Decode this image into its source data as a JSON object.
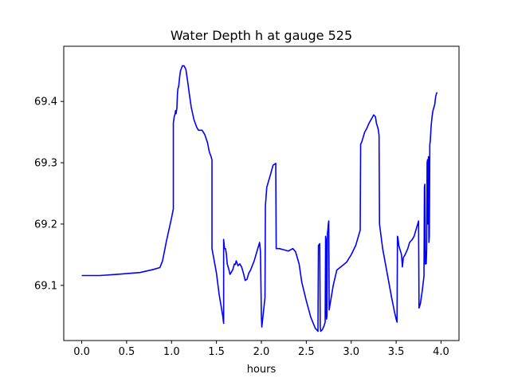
{
  "chart_data": {
    "type": "line",
    "title": "Water Depth h at gauge 525",
    "xlabel": "hours",
    "ylabel": "",
    "xlim": [
      -0.2,
      4.2
    ],
    "ylim": [
      69.01,
      69.49
    ],
    "xticks": [
      0.0,
      0.5,
      1.0,
      1.5,
      2.0,
      2.5,
      3.0,
      3.5,
      4.0
    ],
    "xtick_labels": [
      "0.0",
      "0.5",
      "1.0",
      "1.5",
      "2.0",
      "2.5",
      "3.0",
      "3.5",
      "4.0"
    ],
    "yticks": [
      69.1,
      69.2,
      69.3,
      69.4
    ],
    "ytick_labels": [
      "69.1",
      "69.2",
      "69.3",
      "69.4"
    ],
    "grid": false,
    "series": [
      {
        "color": "#0000ff",
        "points": [
          [
            0.0,
            69.116
          ],
          [
            0.2,
            69.116
          ],
          [
            0.4,
            69.118
          ],
          [
            0.65,
            69.121
          ],
          [
            0.8,
            69.126
          ],
          [
            0.87,
            69.129
          ],
          [
            0.9,
            69.14
          ],
          [
            0.94,
            69.17
          ],
          [
            1.0,
            69.21
          ],
          [
            1.02,
            69.225
          ],
          [
            1.02,
            69.365
          ],
          [
            1.03,
            69.375
          ],
          [
            1.04,
            69.38
          ],
          [
            1.045,
            69.385
          ],
          [
            1.05,
            69.38
          ],
          [
            1.055,
            69.385
          ],
          [
            1.06,
            69.39
          ],
          [
            1.065,
            69.41
          ],
          [
            1.07,
            69.42
          ],
          [
            1.08,
            69.425
          ],
          [
            1.09,
            69.44
          ],
          [
            1.1,
            69.45
          ],
          [
            1.12,
            69.458
          ],
          [
            1.14,
            69.458
          ],
          [
            1.16,
            69.452
          ],
          [
            1.18,
            69.432
          ],
          [
            1.2,
            69.41
          ],
          [
            1.22,
            69.39
          ],
          [
            1.25,
            69.37
          ],
          [
            1.28,
            69.358
          ],
          [
            1.3,
            69.353
          ],
          [
            1.34,
            69.353
          ],
          [
            1.37,
            69.346
          ],
          [
            1.4,
            69.333
          ],
          [
            1.42,
            69.318
          ],
          [
            1.44,
            69.31
          ],
          [
            1.45,
            69.305
          ],
          [
            1.45,
            69.16
          ],
          [
            1.5,
            69.12
          ],
          [
            1.53,
            69.085
          ],
          [
            1.57,
            69.05
          ],
          [
            1.58,
            69.038
          ],
          [
            1.58,
            69.175
          ],
          [
            1.59,
            69.16
          ],
          [
            1.6,
            69.16
          ],
          [
            1.61,
            69.152
          ],
          [
            1.62,
            69.135
          ],
          [
            1.64,
            69.125
          ],
          [
            1.65,
            69.118
          ],
          [
            1.66,
            69.12
          ],
          [
            1.68,
            69.125
          ],
          [
            1.7,
            69.135
          ],
          [
            1.71,
            69.134
          ],
          [
            1.72,
            69.14
          ],
          [
            1.74,
            69.132
          ],
          [
            1.76,
            69.135
          ],
          [
            1.78,
            69.13
          ],
          [
            1.8,
            69.12
          ],
          [
            1.82,
            69.108
          ],
          [
            1.84,
            69.11
          ],
          [
            1.86,
            69.12
          ],
          [
            1.88,
            69.125
          ],
          [
            1.92,
            69.14
          ],
          [
            1.95,
            69.155
          ],
          [
            1.97,
            69.165
          ],
          [
            1.98,
            69.17
          ],
          [
            1.99,
            69.155
          ],
          [
            2.0,
            69.05
          ],
          [
            2.005,
            69.032
          ],
          [
            2.04,
            69.08
          ],
          [
            2.045,
            69.23
          ],
          [
            2.05,
            69.24
          ],
          [
            2.06,
            69.26
          ],
          [
            2.08,
            69.27
          ],
          [
            2.1,
            69.28
          ],
          [
            2.13,
            69.296
          ],
          [
            2.15,
            69.298
          ],
          [
            2.16,
            69.299
          ],
          [
            2.165,
            69.16
          ],
          [
            2.2,
            69.16
          ],
          [
            2.25,
            69.158
          ],
          [
            2.3,
            69.156
          ],
          [
            2.35,
            69.16
          ],
          [
            2.38,
            69.155
          ],
          [
            2.42,
            69.135
          ],
          [
            2.45,
            69.105
          ],
          [
            2.5,
            69.075
          ],
          [
            2.55,
            69.048
          ],
          [
            2.6,
            69.03
          ],
          [
            2.62,
            69.027
          ],
          [
            2.63,
            69.025
          ],
          [
            2.635,
            69.165
          ],
          [
            2.645,
            69.167
          ],
          [
            2.65,
            69.168
          ],
          [
            2.655,
            69.032
          ],
          [
            2.66,
            69.025
          ],
          [
            2.68,
            69.028
          ],
          [
            2.7,
            69.035
          ],
          [
            2.71,
            69.04
          ],
          [
            2.715,
            69.18
          ],
          [
            2.72,
            69.175
          ],
          [
            2.725,
            69.045
          ],
          [
            2.73,
            69.05
          ],
          [
            2.735,
            69.185
          ],
          [
            2.74,
            69.19
          ],
          [
            2.745,
            69.2
          ],
          [
            2.75,
            69.205
          ],
          [
            2.755,
            69.06
          ],
          [
            2.76,
            69.065
          ],
          [
            2.8,
            69.1
          ],
          [
            2.84,
            69.125
          ],
          [
            2.9,
            69.132
          ],
          [
            2.95,
            69.138
          ],
          [
            3.0,
            69.15
          ],
          [
            3.05,
            69.165
          ],
          [
            3.08,
            69.18
          ],
          [
            3.1,
            69.19
          ],
          [
            3.105,
            69.33
          ],
          [
            3.12,
            69.335
          ],
          [
            3.14,
            69.345
          ],
          [
            3.15,
            69.35
          ],
          [
            3.17,
            69.355
          ],
          [
            3.2,
            69.365
          ],
          [
            3.22,
            69.37
          ],
          [
            3.25,
            69.378
          ],
          [
            3.27,
            69.375
          ],
          [
            3.28,
            69.365
          ],
          [
            3.3,
            69.355
          ],
          [
            3.31,
            69.345
          ],
          [
            3.315,
            69.2
          ],
          [
            3.35,
            69.16
          ],
          [
            3.4,
            69.12
          ],
          [
            3.45,
            69.08
          ],
          [
            3.48,
            69.058
          ],
          [
            3.5,
            69.045
          ],
          [
            3.51,
            69.04
          ],
          [
            3.515,
            69.18
          ],
          [
            3.52,
            69.178
          ],
          [
            3.53,
            69.165
          ],
          [
            3.55,
            69.155
          ],
          [
            3.56,
            69.15
          ],
          [
            3.57,
            69.13
          ],
          [
            3.58,
            69.145
          ],
          [
            3.6,
            69.15
          ],
          [
            3.63,
            69.16
          ],
          [
            3.65,
            69.17
          ],
          [
            3.68,
            69.175
          ],
          [
            3.7,
            69.18
          ],
          [
            3.72,
            69.19
          ],
          [
            3.74,
            69.2
          ],
          [
            3.75,
            69.205
          ],
          [
            3.755,
            69.063
          ],
          [
            3.77,
            69.07
          ],
          [
            3.79,
            69.09
          ],
          [
            3.81,
            69.115
          ],
          [
            3.815,
            69.26
          ],
          [
            3.82,
            69.265
          ],
          [
            3.825,
            69.135
          ],
          [
            3.83,
            69.14
          ],
          [
            3.835,
            69.135
          ],
          [
            3.84,
            69.16
          ],
          [
            3.845,
            69.3
          ],
          [
            3.85,
            69.305
          ],
          [
            3.855,
            69.2
          ],
          [
            3.86,
            69.31
          ],
          [
            3.865,
            69.17
          ],
          [
            3.87,
            69.18
          ],
          [
            3.875,
            69.33
          ],
          [
            3.88,
            69.335
          ],
          [
            3.89,
            69.36
          ],
          [
            3.9,
            69.375
          ],
          [
            3.91,
            69.385
          ],
          [
            3.93,
            69.395
          ],
          [
            3.94,
            69.408
          ],
          [
            3.95,
            69.413
          ],
          [
            3.955,
            69.415
          ]
        ]
      }
    ]
  }
}
